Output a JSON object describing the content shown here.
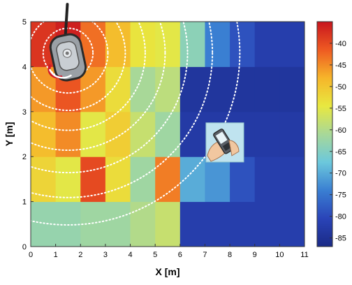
{
  "chart_data": {
    "type": "heatmap",
    "xlabel": "X [m]",
    "ylabel": "Y [m]",
    "xlim": [
      0,
      11
    ],
    "ylim": [
      0,
      5
    ],
    "x_ticks": [
      0,
      1,
      2,
      3,
      4,
      5,
      6,
      7,
      8,
      9,
      10,
      11
    ],
    "y_ticks": [
      0,
      1,
      2,
      3,
      4,
      5
    ],
    "colorbar": {
      "range": [
        -87,
        -35
      ],
      "ticks": [
        -40,
        -45,
        -50,
        -55,
        -60,
        -65,
        -70,
        -75,
        -80,
        -85
      ]
    },
    "grid": false,
    "cell_width": 1,
    "cell_height": 1,
    "rows_from_bottom": [
      {
        "y": 0,
        "values": [
          -63,
          -63,
          -62,
          -62,
          -60,
          -58,
          -82,
          -82,
          -82,
          -82,
          -82
        ]
      },
      {
        "y": 1,
        "values": [
          -52,
          -55,
          -40,
          -53,
          -62,
          -44,
          -70,
          -72,
          -79,
          -82,
          -82
        ]
      },
      {
        "y": 2,
        "values": [
          -49,
          -45,
          -55,
          -51,
          -58,
          -62,
          -83,
          -83,
          -83,
          -83,
          -83
        ]
      },
      {
        "y": 3,
        "values": [
          -46,
          -41,
          -46,
          -53,
          -61,
          -59,
          -84,
          -84,
          -84,
          -84,
          -84
        ]
      },
      {
        "y": 4,
        "values": [
          -38,
          -36,
          -43,
          -49,
          -54,
          -55,
          -64,
          -74,
          -79,
          -82,
          -82
        ]
      }
    ],
    "access_point_location": [
      1.5,
      4.3
    ],
    "phone_location": [
      7.8,
      2.3
    ],
    "contour_rings_m": [
      0.6,
      1.0,
      1.6,
      2.3,
      3.1,
      3.9,
      4.8,
      5.8,
      6.9
    ]
  },
  "icons": {
    "access_point": "wifi-router-icon",
    "phone": "mobile-phone-icon"
  }
}
